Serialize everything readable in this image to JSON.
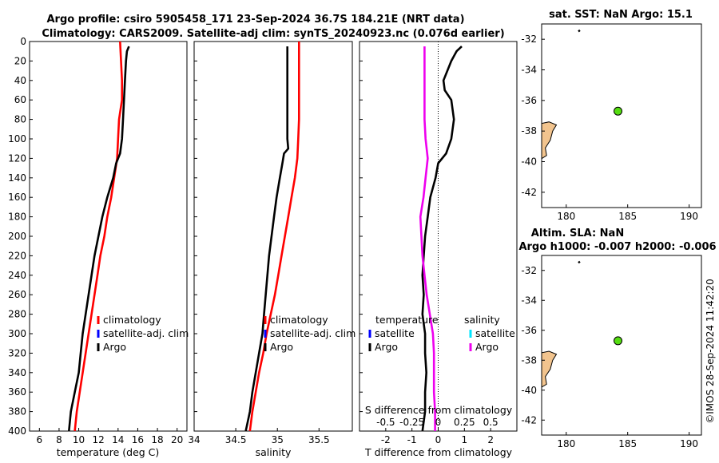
{
  "title": {
    "line1": "Argo profile: csiro 5905458_171 23-Sep-2024 36.7S 184.21E (NRT data)",
    "line2": "Climatology: CARS2009. Satellite-adj clim: synTS_20240923.nc (0.076d earlier)"
  },
  "colors": {
    "climatology": "#ff0000",
    "satellite": "#0000ff",
    "argo": "#000000",
    "salinity_satellite": "#00e5ff",
    "salinity_diff": "#ee00ee",
    "land": "#f2c48e",
    "float_marker": "#55dd11"
  },
  "chart_data": [
    {
      "type": "line",
      "name": "temperature-panel",
      "xlabel": "temperature (deg C)",
      "ylabel": "",
      "xlim": [
        5,
        21
      ],
      "ylim": [
        400,
        0
      ],
      "xticks": [
        6,
        8,
        10,
        12,
        14,
        16,
        18,
        20
      ],
      "yticks": [
        0,
        20,
        40,
        60,
        80,
        100,
        120,
        140,
        160,
        180,
        200,
        220,
        240,
        260,
        280,
        300,
        320,
        340,
        360,
        380,
        400
      ],
      "legend": {
        "position": "lower-right",
        "entries": [
          "climatology",
          "satellite-adj. clim",
          "Argo"
        ]
      },
      "series": [
        {
          "name": "climatology",
          "depth": [
            0,
            20,
            40,
            60,
            80,
            100,
            120,
            140,
            160,
            180,
            200,
            220,
            240,
            260,
            280,
            300,
            320,
            340,
            360,
            380,
            400
          ],
          "values": [
            14.2,
            14.3,
            14.4,
            14.4,
            14.1,
            14.0,
            13.9,
            13.6,
            13.3,
            12.9,
            12.6,
            12.2,
            11.9,
            11.6,
            11.3,
            11.0,
            10.7,
            10.4,
            10.1,
            9.8,
            9.6
          ]
        },
        {
          "name": "Argo",
          "depth": [
            5,
            10,
            20,
            40,
            60,
            80,
            100,
            115,
            125,
            140,
            160,
            180,
            200,
            220,
            240,
            260,
            280,
            300,
            320,
            340,
            360,
            380,
            400
          ],
          "values": [
            15.1,
            14.9,
            14.8,
            14.7,
            14.6,
            14.5,
            14.4,
            14.2,
            13.8,
            13.5,
            12.9,
            12.4,
            12.0,
            11.6,
            11.3,
            11.0,
            10.7,
            10.4,
            10.2,
            10.0,
            9.6,
            9.2,
            9.0
          ]
        }
      ]
    },
    {
      "type": "line",
      "name": "salinity-panel",
      "xlabel": "salinity",
      "ylabel": "",
      "xlim": [
        34.0,
        35.9
      ],
      "ylim": [
        400,
        0
      ],
      "xticks": [
        34,
        34.5,
        35,
        35.5
      ],
      "xticklabels": [
        "34",
        "34.5",
        "35",
        "35.5"
      ],
      "legend": {
        "position": "lower-right",
        "entries": [
          "climatology",
          "satellite-adj. clim",
          "Argo"
        ]
      },
      "series": [
        {
          "name": "climatology",
          "depth": [
            0,
            20,
            40,
            60,
            80,
            100,
            120,
            140,
            160,
            180,
            200,
            220,
            240,
            260,
            280,
            300,
            320,
            340,
            360,
            380,
            400
          ],
          "values": [
            35.26,
            35.26,
            35.26,
            35.26,
            35.26,
            35.25,
            35.24,
            35.21,
            35.17,
            35.13,
            35.09,
            35.05,
            35.01,
            34.97,
            34.92,
            34.87,
            34.83,
            34.78,
            34.74,
            34.7,
            34.67
          ]
        },
        {
          "name": "Argo",
          "depth": [
            5,
            20,
            40,
            60,
            80,
            100,
            110,
            115,
            125,
            140,
            160,
            180,
            200,
            220,
            240,
            260,
            280,
            300,
            320,
            340,
            360,
            380,
            400
          ],
          "values": [
            35.12,
            35.12,
            35.12,
            35.12,
            35.12,
            35.12,
            35.13,
            35.08,
            35.06,
            35.03,
            34.99,
            34.96,
            34.93,
            34.9,
            34.88,
            34.86,
            34.84,
            34.82,
            34.78,
            34.74,
            34.7,
            34.67,
            34.62
          ]
        }
      ]
    },
    {
      "type": "line",
      "name": "difference-panel",
      "xlabel": "T difference from climatology",
      "xlabel_top": "S difference from climatology",
      "xlim": [
        -3,
        3
      ],
      "ylim": [
        400,
        0
      ],
      "xticks": [
        -2,
        -1,
        0,
        1,
        2
      ],
      "xticks_top": [
        -0.5,
        -0.25,
        0,
        0.25,
        0.5
      ],
      "xticklabels_top": [
        "-0.5",
        "-0.25",
        "0",
        "0.25",
        "0.5"
      ],
      "legend": {
        "position": "lower-center",
        "group1_title": "temperature",
        "group1_entries": [
          "satellite",
          "Argo"
        ],
        "group2_title": "salinity",
        "group2_entries": [
          "satellite",
          "Argo"
        ]
      },
      "series": [
        {
          "name": "temperature Argo",
          "depth": [
            5,
            10,
            20,
            40,
            50,
            60,
            80,
            100,
            115,
            125,
            140,
            160,
            180,
            200,
            220,
            240,
            260,
            280,
            300,
            320,
            340,
            360,
            380,
            400
          ],
          "values": [
            0.9,
            0.7,
            0.5,
            0.2,
            0.25,
            0.5,
            0.6,
            0.5,
            0.3,
            0.0,
            -0.1,
            -0.3,
            -0.4,
            -0.5,
            -0.55,
            -0.6,
            -0.55,
            -0.6,
            -0.5,
            -0.5,
            -0.45,
            -0.5,
            -0.5,
            -0.6
          ]
        },
        {
          "name": "salinity Argo",
          "depth": [
            5,
            20,
            40,
            60,
            80,
            100,
            120,
            140,
            160,
            180,
            200,
            220,
            240,
            260,
            280,
            300,
            320,
            340,
            360,
            380,
            400
          ],
          "values": [
            -0.13,
            -0.13,
            -0.13,
            -0.13,
            -0.13,
            -0.12,
            -0.1,
            -0.12,
            -0.14,
            -0.17,
            -0.16,
            -0.15,
            -0.13,
            -0.11,
            -0.08,
            -0.05,
            -0.04,
            -0.04,
            -0.04,
            -0.03,
            -0.03
          ]
        }
      ]
    }
  ],
  "maps": [
    {
      "name": "sst-map",
      "title_line1": "sat. SST: NaN Argo: 15.1",
      "title_line2": "",
      "xlim": [
        178,
        191
      ],
      "ylim": [
        -43,
        -31
      ],
      "xticks": [
        180,
        185,
        190
      ],
      "yticks": [
        -32,
        -34,
        -36,
        -38,
        -40,
        -42
      ],
      "float_position": [
        184.21,
        -36.7
      ],
      "float_track": [
        [
          181.0,
          -31.4
        ],
        [
          181.1,
          -31.5
        ]
      ]
    },
    {
      "name": "sla-map",
      "title_line1": "Altim. SLA: NaN",
      "title_line2": "Argo h1000: -0.007 h2000: -0.006",
      "xlim": [
        178,
        191
      ],
      "ylim": [
        -43,
        -31
      ],
      "xticks": [
        180,
        185,
        190
      ],
      "yticks": [
        -32,
        -34,
        -36,
        -38,
        -40,
        -42
      ],
      "float_position": [
        184.21,
        -36.7
      ],
      "float_track": [
        [
          181.0,
          -31.4
        ],
        [
          181.1,
          -31.5
        ]
      ]
    }
  ],
  "credit": "©IMOS 28-Sep-2024 11:42:20"
}
